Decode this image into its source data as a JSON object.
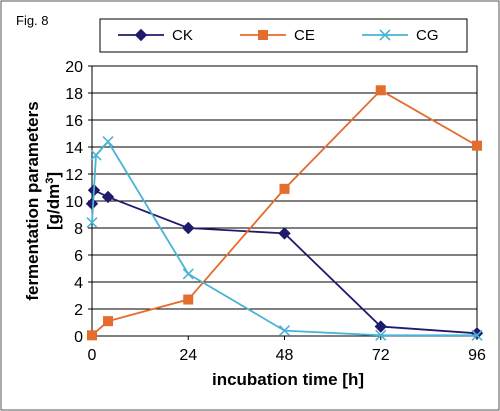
{
  "figure_label": "Fig. 8",
  "chart_data": {
    "type": "line",
    "x": [
      0,
      0.5,
      1,
      4,
      24,
      48,
      72,
      96
    ],
    "xticks": [
      "0",
      "24",
      "48",
      "72",
      "96"
    ],
    "xtick_values": [
      0,
      24,
      48,
      72,
      96
    ],
    "xlim": [
      0,
      96
    ],
    "ylim": [
      0,
      20
    ],
    "yticks": [
      0,
      2,
      4,
      6,
      8,
      10,
      12,
      14,
      16,
      18,
      20
    ],
    "xlabel": "incubation time [h]",
    "ylabel_line1": "fermentation parameters",
    "ylabel_line2_base": "[g/dm",
    "ylabel_line2_sup": "3",
    "ylabel_line2_end": "]",
    "grid": "horizontal",
    "legend_position": "top",
    "series": [
      {
        "name": "CK",
        "color": "#1f1a6b",
        "marker": "diamond",
        "x": [
          0,
          0.5,
          4,
          24,
          48,
          72,
          96
        ],
        "values": [
          9.8,
          10.8,
          10.3,
          8.0,
          7.6,
          0.7,
          0.2
        ]
      },
      {
        "name": "CE",
        "color": "#e46c2c",
        "marker": "square",
        "x": [
          0,
          4,
          24,
          48,
          72,
          96
        ],
        "values": [
          0.05,
          1.1,
          2.7,
          10.9,
          18.2,
          14.1
        ]
      },
      {
        "name": "CG",
        "color": "#4ab3d6",
        "marker": "x",
        "x": [
          0,
          1,
          4,
          24,
          48,
          72,
          96
        ],
        "values": [
          8.4,
          13.4,
          14.4,
          4.6,
          0.4,
          0.05,
          0.05
        ]
      }
    ]
  }
}
